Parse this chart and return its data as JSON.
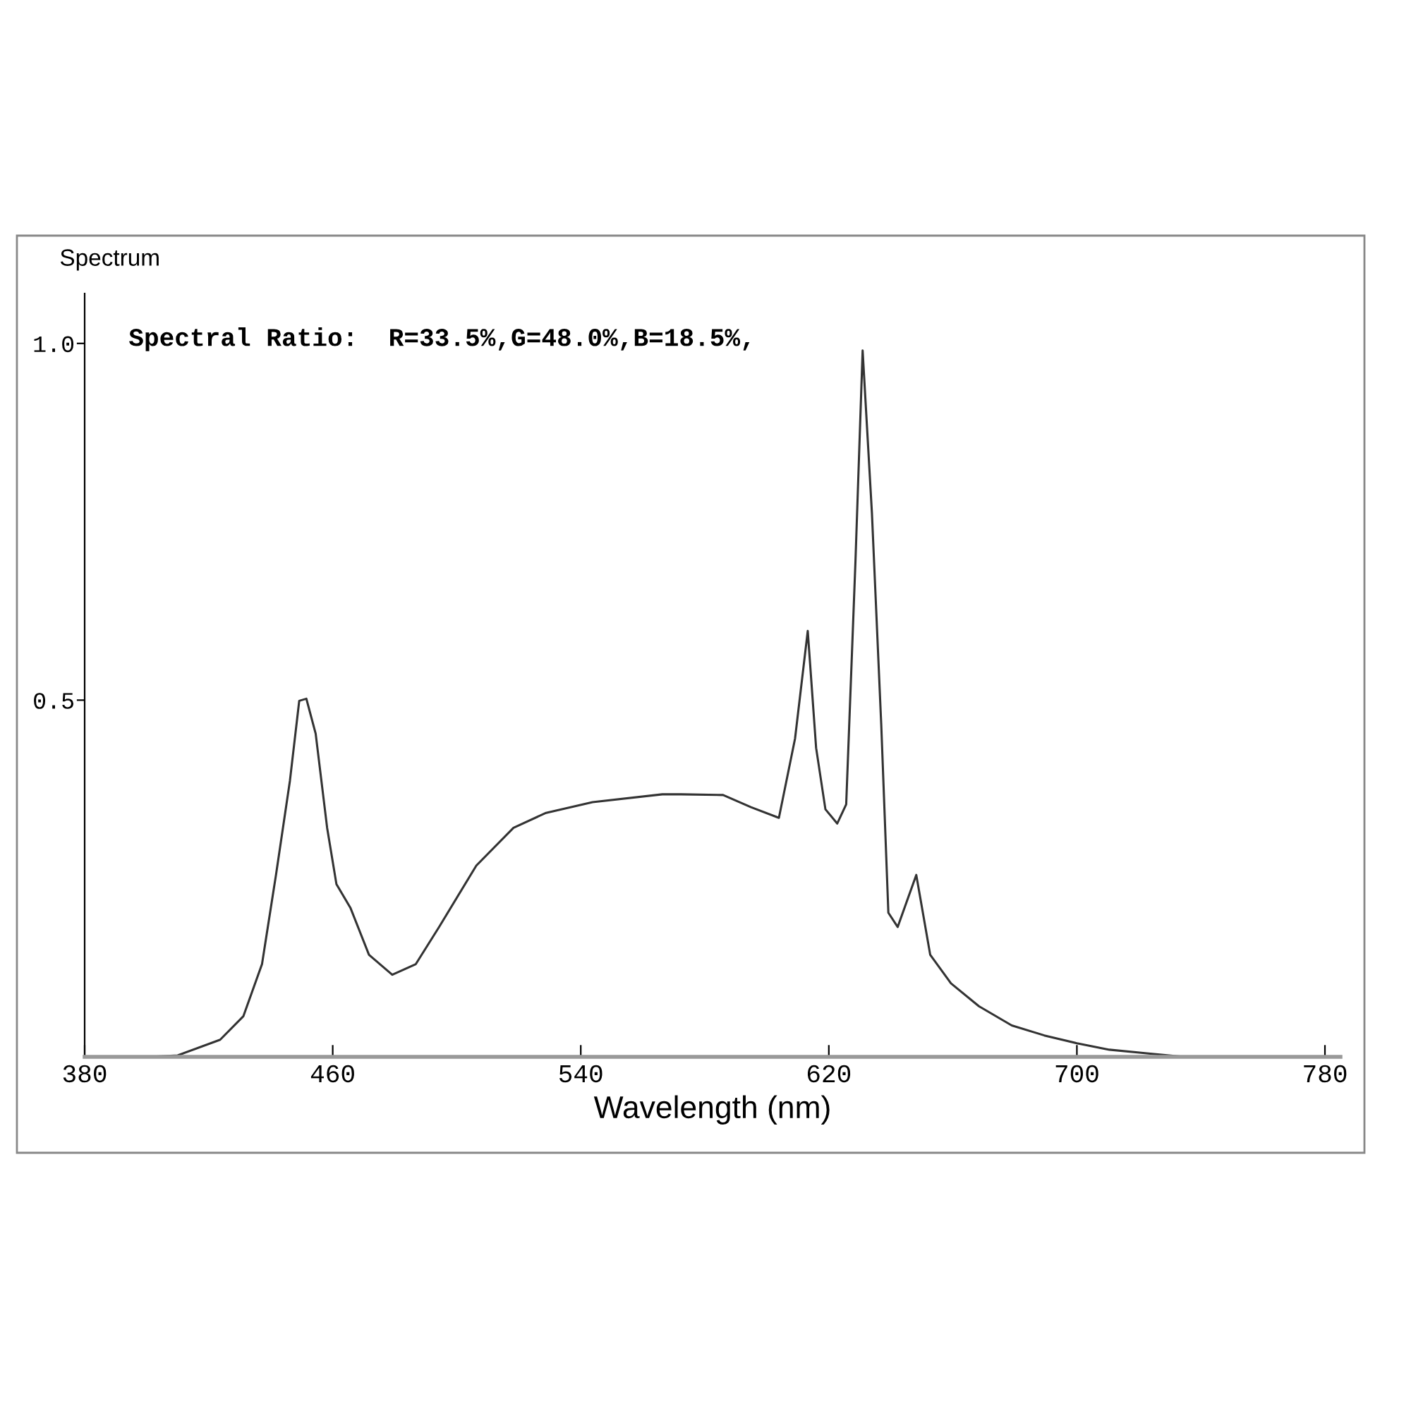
{
  "chart_data": {
    "type": "line",
    "xlabel": "Wavelength (nm)",
    "ylabel": "Spectrum",
    "annotations": [
      "Spectral Ratio:  R=33.5%,G=48.0%,B=18.5%,"
    ],
    "xlim": [
      380,
      785
    ],
    "ylim": [
      0,
      1.07
    ],
    "xticks": [
      380,
      460,
      540,
      620,
      700,
      780
    ],
    "yticks": [
      {
        "value": 0.5,
        "label": "0.5"
      },
      {
        "value": 1.0,
        "label": "1.0"
      }
    ],
    "grid": false,
    "legend": false,
    "marker": "none",
    "line_style": "solid",
    "series": [
      {
        "color": "#333333",
        "x": [
          380,
          401,
          410,
          423.7,
          431.2,
          437.2,
          441.7,
          446.2,
          449.2,
          451.5,
          454.5,
          458.2,
          461.2,
          465.7,
          471.7,
          479.2,
          486.8,
          494.3,
          506.3,
          518.3,
          528.8,
          543.8,
          566.3,
          572.3,
          585.9,
          594.9,
          603.9,
          609.1,
          613.2,
          615.9,
          618.9,
          622.7,
          625.6,
          628.6,
          630.9,
          633.9,
          636.9,
          639.2,
          642.2,
          648.2,
          652.7,
          659.4,
          668.4,
          679,
          689.5,
          700,
          710.5,
          722.5,
          734.5,
          780
        ],
        "values": [
          0,
          0,
          0.002,
          0.024,
          0.057,
          0.13,
          0.255,
          0.387,
          0.499,
          0.502,
          0.453,
          0.321,
          0.242,
          0.209,
          0.143,
          0.115,
          0.13,
          0.182,
          0.268,
          0.321,
          0.342,
          0.357,
          0.368,
          0.368,
          0.367,
          0.35,
          0.335,
          0.446,
          0.597,
          0.433,
          0.347,
          0.327,
          0.354,
          0.696,
          0.99,
          0.762,
          0.466,
          0.202,
          0.182,
          0.255,
          0.143,
          0.103,
          0.071,
          0.044,
          0.03,
          0.019,
          0.01,
          0.005,
          0,
          0
        ]
      }
    ]
  }
}
